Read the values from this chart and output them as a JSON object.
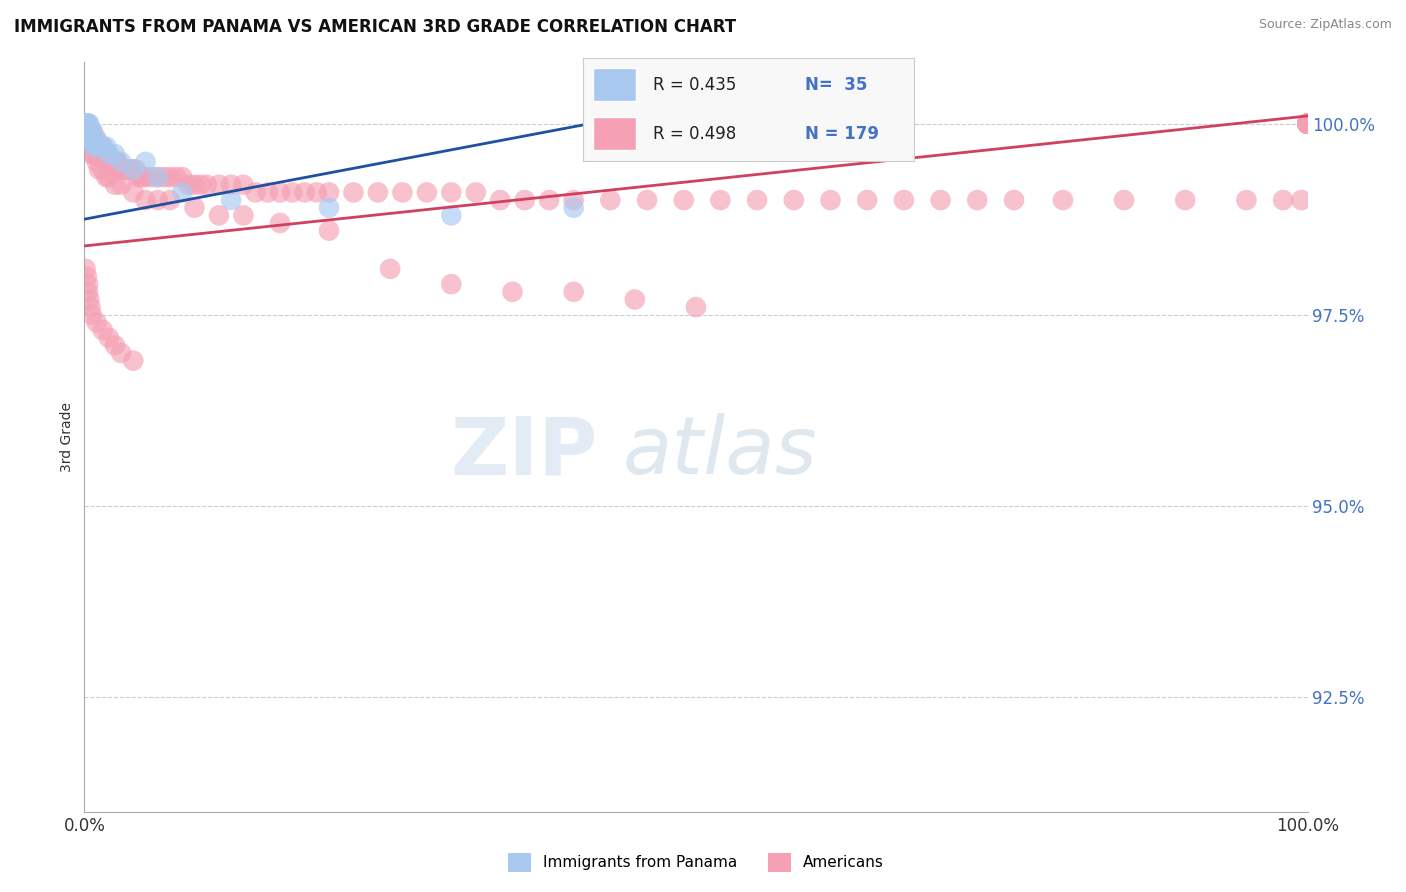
{
  "title": "IMMIGRANTS FROM PANAMA VS AMERICAN 3RD GRADE CORRELATION CHART",
  "source_text": "Source: ZipAtlas.com",
  "ylabel": "3rd Grade",
  "xlim": [
    0.0,
    1.0
  ],
  "ylim_min": 0.91,
  "ylim_max": 1.008,
  "ytick_labels": [
    "92.5%",
    "95.0%",
    "97.5%",
    "100.0%"
  ],
  "ytick_values": [
    0.925,
    0.95,
    0.975,
    1.0
  ],
  "xtick_labels": [
    "0.0%",
    "100.0%"
  ],
  "xtick_values": [
    0.0,
    1.0
  ],
  "color_blue": "#A8C8F0",
  "color_pink": "#F5A0B5",
  "trendline_blue": "#2050A0",
  "trendline_pink": "#D04060",
  "watermark_zip": "ZIP",
  "watermark_atlas": "atlas",
  "background_color": "#FFFFFF",
  "blue_x": [
    0.002,
    0.002,
    0.002,
    0.002,
    0.002,
    0.003,
    0.003,
    0.004,
    0.004,
    0.004,
    0.005,
    0.005,
    0.005,
    0.006,
    0.006,
    0.007,
    0.007,
    0.008,
    0.008,
    0.009,
    0.01,
    0.012,
    0.015,
    0.018,
    0.02,
    0.025,
    0.03,
    0.04,
    0.05,
    0.06,
    0.08,
    0.12,
    0.2,
    0.3,
    0.4
  ],
  "blue_y": [
    1.0,
    1.0,
    1.0,
    0.999,
    0.999,
    1.0,
    0.999,
    0.999,
    0.998,
    1.0,
    0.999,
    0.998,
    0.998,
    0.999,
    0.998,
    0.999,
    0.998,
    0.998,
    0.997,
    0.998,
    0.997,
    0.997,
    0.997,
    0.997,
    0.996,
    0.996,
    0.995,
    0.994,
    0.995,
    0.993,
    0.991,
    0.99,
    0.989,
    0.988,
    0.989
  ],
  "pink_x": [
    0.001,
    0.001,
    0.002,
    0.002,
    0.002,
    0.003,
    0.003,
    0.003,
    0.004,
    0.004,
    0.004,
    0.005,
    0.005,
    0.005,
    0.006,
    0.006,
    0.007,
    0.007,
    0.008,
    0.008,
    0.009,
    0.01,
    0.01,
    0.011,
    0.012,
    0.012,
    0.013,
    0.014,
    0.015,
    0.015,
    0.016,
    0.017,
    0.018,
    0.019,
    0.02,
    0.021,
    0.022,
    0.023,
    0.024,
    0.025,
    0.026,
    0.027,
    0.028,
    0.029,
    0.03,
    0.032,
    0.034,
    0.036,
    0.038,
    0.04,
    0.042,
    0.044,
    0.046,
    0.048,
    0.05,
    0.055,
    0.06,
    0.065,
    0.07,
    0.075,
    0.08,
    0.085,
    0.09,
    0.095,
    0.1,
    0.11,
    0.12,
    0.13,
    0.14,
    0.15,
    0.16,
    0.17,
    0.18,
    0.19,
    0.2,
    0.22,
    0.24,
    0.26,
    0.28,
    0.3,
    0.32,
    0.34,
    0.36,
    0.38,
    0.4,
    0.43,
    0.46,
    0.49,
    0.52,
    0.55,
    0.58,
    0.61,
    0.64,
    0.67,
    0.7,
    0.73,
    0.76,
    0.8,
    0.85,
    0.9,
    0.95,
    0.98,
    0.995,
    1.0,
    1.0,
    1.0,
    1.0,
    1.0,
    1.0,
    1.0,
    1.0,
    1.0,
    1.0,
    1.0,
    1.0,
    1.0,
    1.0,
    1.0,
    1.0,
    1.0,
    1.0,
    1.0,
    1.0,
    1.0,
    1.0,
    1.0,
    1.0,
    1.0,
    1.0,
    1.0,
    1.0,
    1.0,
    1.0,
    1.0,
    1.0,
    1.0,
    1.0,
    1.0,
    1.0,
    1.0,
    0.004,
    0.005,
    0.006,
    0.008,
    0.01,
    0.012,
    0.015,
    0.018,
    0.02,
    0.025,
    0.03,
    0.04,
    0.05,
    0.06,
    0.07,
    0.09,
    0.11,
    0.13,
    0.16,
    0.2,
    0.25,
    0.3,
    0.35,
    0.4,
    0.45,
    0.5,
    0.001,
    0.002,
    0.003,
    0.003,
    0.004,
    0.005,
    0.006,
    0.01,
    0.015,
    0.02,
    0.025,
    0.03,
    0.04
  ],
  "pink_y": [
    0.999,
    0.998,
    0.999,
    0.998,
    0.997,
    0.999,
    0.998,
    0.997,
    0.999,
    0.998,
    0.997,
    0.999,
    0.998,
    0.997,
    0.998,
    0.997,
    0.998,
    0.997,
    0.997,
    0.996,
    0.997,
    0.998,
    0.997,
    0.997,
    0.997,
    0.996,
    0.997,
    0.996,
    0.997,
    0.996,
    0.996,
    0.996,
    0.996,
    0.996,
    0.995,
    0.995,
    0.995,
    0.995,
    0.995,
    0.995,
    0.995,
    0.995,
    0.994,
    0.994,
    0.994,
    0.994,
    0.994,
    0.994,
    0.994,
    0.994,
    0.994,
    0.993,
    0.993,
    0.993,
    0.993,
    0.993,
    0.993,
    0.993,
    0.993,
    0.993,
    0.993,
    0.992,
    0.992,
    0.992,
    0.992,
    0.992,
    0.992,
    0.992,
    0.991,
    0.991,
    0.991,
    0.991,
    0.991,
    0.991,
    0.991,
    0.991,
    0.991,
    0.991,
    0.991,
    0.991,
    0.991,
    0.99,
    0.99,
    0.99,
    0.99,
    0.99,
    0.99,
    0.99,
    0.99,
    0.99,
    0.99,
    0.99,
    0.99,
    0.99,
    0.99,
    0.99,
    0.99,
    0.99,
    0.99,
    0.99,
    0.99,
    0.99,
    0.99,
    1.0,
    1.0,
    1.0,
    1.0,
    1.0,
    1.0,
    1.0,
    1.0,
    1.0,
    1.0,
    1.0,
    1.0,
    1.0,
    1.0,
    1.0,
    1.0,
    1.0,
    1.0,
    1.0,
    1.0,
    1.0,
    1.0,
    1.0,
    1.0,
    1.0,
    1.0,
    1.0,
    1.0,
    1.0,
    1.0,
    1.0,
    1.0,
    1.0,
    1.0,
    1.0,
    1.0,
    1.0,
    0.997,
    0.997,
    0.996,
    0.996,
    0.995,
    0.994,
    0.994,
    0.993,
    0.993,
    0.992,
    0.992,
    0.991,
    0.99,
    0.99,
    0.99,
    0.989,
    0.988,
    0.988,
    0.987,
    0.986,
    0.981,
    0.979,
    0.978,
    0.978,
    0.977,
    0.976,
    0.981,
    0.98,
    0.979,
    0.978,
    0.977,
    0.976,
    0.975,
    0.974,
    0.973,
    0.972,
    0.971,
    0.97,
    0.969
  ],
  "blue_trendline_x0": 0.0,
  "blue_trendline_y0": 0.9875,
  "blue_trendline_x1": 0.43,
  "blue_trendline_y1": 1.0005,
  "pink_trendline_x0": 0.0,
  "pink_trendline_y0": 0.984,
  "pink_trendline_x1": 1.0,
  "pink_trendline_y1": 1.001
}
